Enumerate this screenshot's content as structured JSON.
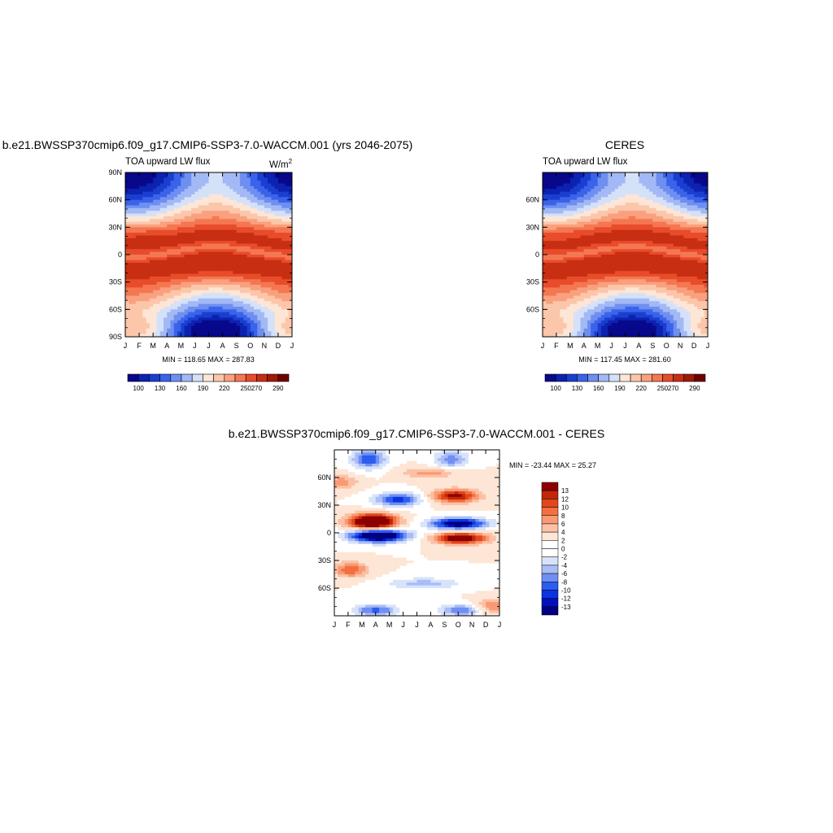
{
  "panels": [
    {
      "title": "b.e21.BWSSP370cmip6.f09_g17.CMIP6-SSP3-7.0-WACCM.001 (yrs 2046-2075)",
      "left_label": "TOA upward LW flux",
      "units": "W/m",
      "units_exp": "2",
      "stats": "MIN = 118.65 MAX = 287.83"
    },
    {
      "title": "CERES",
      "left_label": "TOA upward LW flux",
      "units": "",
      "stats": "MIN = 117.45 MAX = 281.60"
    },
    {
      "title": "b.e21.BWSSP370cmip6.f09_g17.CMIP6-SSP3-7.0-WACCM.001 - CERES",
      "stats": "MIN = -23.44 MAX =  25.27"
    }
  ],
  "chart_data": [
    {
      "type": "heatmap",
      "title": "b.e21.BWSSP370cmip6.f09_g17.CMIP6-SSP3-7.0-WACCM.001 (yrs 2046-2075)",
      "x_ticks": [
        "J",
        "F",
        "M",
        "A",
        "M",
        "J",
        "J",
        "A",
        "S",
        "O",
        "N",
        "D",
        "J"
      ],
      "y_ticks": [
        "90N",
        "60N",
        "30N",
        "0",
        "30S",
        "60S",
        "90S"
      ],
      "y_tick_values": [
        90,
        60,
        30,
        0,
        -30,
        -60,
        -90
      ],
      "ylim": [
        -90,
        90
      ],
      "colorbar_labels": [
        "100",
        "130",
        "160",
        "190",
        "220",
        "250",
        "270",
        "290"
      ],
      "levels": [
        100,
        110,
        120,
        130,
        140,
        150,
        160,
        170,
        180,
        190,
        200,
        210,
        220,
        230,
        240,
        250,
        260,
        270,
        280,
        290,
        300
      ],
      "min": 118.65,
      "max": 287.83
    },
    {
      "type": "heatmap",
      "title": "CERES",
      "x_ticks": [
        "J",
        "F",
        "M",
        "A",
        "M",
        "J",
        "J",
        "A",
        "S",
        "O",
        "N",
        "D",
        "J"
      ],
      "y_ticks": [
        "60N",
        "30N",
        "0",
        "30S",
        "60S"
      ],
      "y_tick_values": [
        60,
        30,
        0,
        -30,
        -60
      ],
      "ylim": [
        -90,
        90
      ],
      "colorbar_labels": [
        "100",
        "130",
        "160",
        "190",
        "220",
        "250",
        "270",
        "290"
      ],
      "min": 117.45,
      "max": 281.6
    },
    {
      "type": "heatmap",
      "title": "b.e21.BWSSP370cmip6.f09_g17.CMIP6-SSP3-7.0-WACCM.001 - CERES",
      "x_ticks": [
        "J",
        "F",
        "M",
        "A",
        "M",
        "J",
        "J",
        "A",
        "S",
        "O",
        "N",
        "D",
        "J"
      ],
      "y_ticks": [
        "60N",
        "30N",
        "0",
        "30S",
        "60S"
      ],
      "y_tick_values": [
        60,
        30,
        0,
        -30,
        -60
      ],
      "ylim": [
        -90,
        90
      ],
      "colorbar_labels": [
        "13",
        "12",
        "10",
        "8",
        "6",
        "4",
        "2",
        "0",
        "-2",
        "-4",
        "-6",
        "-8",
        "-10",
        "-12",
        "-13"
      ],
      "min": -23.44,
      "max": 25.27
    }
  ],
  "colors": {
    "abs_palette": [
      "#08088a",
      "#0c22b0",
      "#1a3fd0",
      "#3a63ea",
      "#6f8ff0",
      "#a3b9f5",
      "#d4e1f8",
      "#fde6d6",
      "#fcc6aa",
      "#f9a07e",
      "#f47752",
      "#e84c2a",
      "#c82e12",
      "#a01a08",
      "#700000"
    ],
    "diff_palette": [
      "#000080",
      "#0010c0",
      "#0a34e0",
      "#2d5cf0",
      "#6f8ff2",
      "#a9bcf6",
      "#d7e3fa",
      "#ffffff",
      "#fde6d6",
      "#fcc1a4",
      "#f99a76",
      "#f2703f",
      "#e2461c",
      "#c22808",
      "#8c0000"
    ]
  }
}
